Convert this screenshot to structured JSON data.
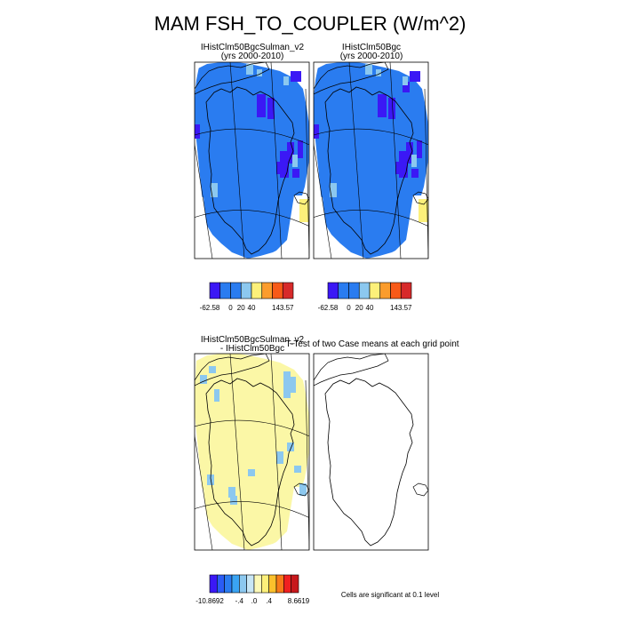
{
  "chart_data": {
    "type": "map",
    "title": "MAM FSH_TO_COUPLER (W/m^2)",
    "panels": [
      {
        "id": "case",
        "title_lines": [
          "IHistClm50BgcSulman_v2",
          "(yrs 2000-2010)"
        ],
        "field": "case1"
      },
      {
        "id": "ref",
        "title_lines": [
          "IHistClm50Bgc",
          "(yrs 2000-2010)"
        ],
        "field": "case2"
      },
      {
        "id": "diff",
        "title_lines": [
          "IHistClm50BgcSulman_v2",
          "- IHistClm50Bgc"
        ],
        "field": "diff"
      },
      {
        "id": "ttest",
        "title_lines": [
          "T-Test of two Case means at each grid point"
        ],
        "field": "none"
      }
    ],
    "colorbars": [
      {
        "id": "case-colorbar",
        "colors": [
          "#3b18f5",
          "#2a7cf0",
          "#2a7cf0",
          "#8cc8ef",
          "#fcf07a",
          "#fb9c2c",
          "#f85a18",
          "#d72a2a"
        ],
        "labels": [
          "-62.58",
          "0",
          "20",
          "40",
          "143.57"
        ],
        "label_at_box_edge": [
          0,
          2,
          3,
          4,
          7
        ]
      },
      {
        "id": "ref-colorbar",
        "colors": [
          "#3b18f5",
          "#2a7cf0",
          "#2a7cf0",
          "#8cc8ef",
          "#fcf07a",
          "#fb9c2c",
          "#f85a18",
          "#d72a2a"
        ],
        "labels": [
          "-62.58",
          "0",
          "20",
          "40",
          "143.57"
        ],
        "label_at_box_edge": [
          0,
          2,
          3,
          4,
          7
        ]
      },
      {
        "id": "diff-colorbar",
        "colors": [
          "#3b18f5",
          "#2a5cf5",
          "#2a7cf0",
          "#3aa4f2",
          "#8cc8ef",
          "#c8e6f5",
          "#fcf9b8",
          "#fcf07a",
          "#fbc02c",
          "#f87a18",
          "#f02020",
          "#c8181c"
        ],
        "labels": [
          "-10.8692",
          "-.4",
          ".0",
          ".4",
          "8.6619"
        ],
        "label_at_box_edge": [
          0,
          4,
          6,
          8,
          12
        ]
      }
    ],
    "significance_note": "Cells are significant at 0.1 level",
    "palette": {
      "blue_main": "#2a7cf0",
      "blue_dark": "#3b18f5",
      "blue_light": "#8cc8ef",
      "yellow": "#fcf07a",
      "yellow_pale": "#fbf7a6"
    }
  }
}
